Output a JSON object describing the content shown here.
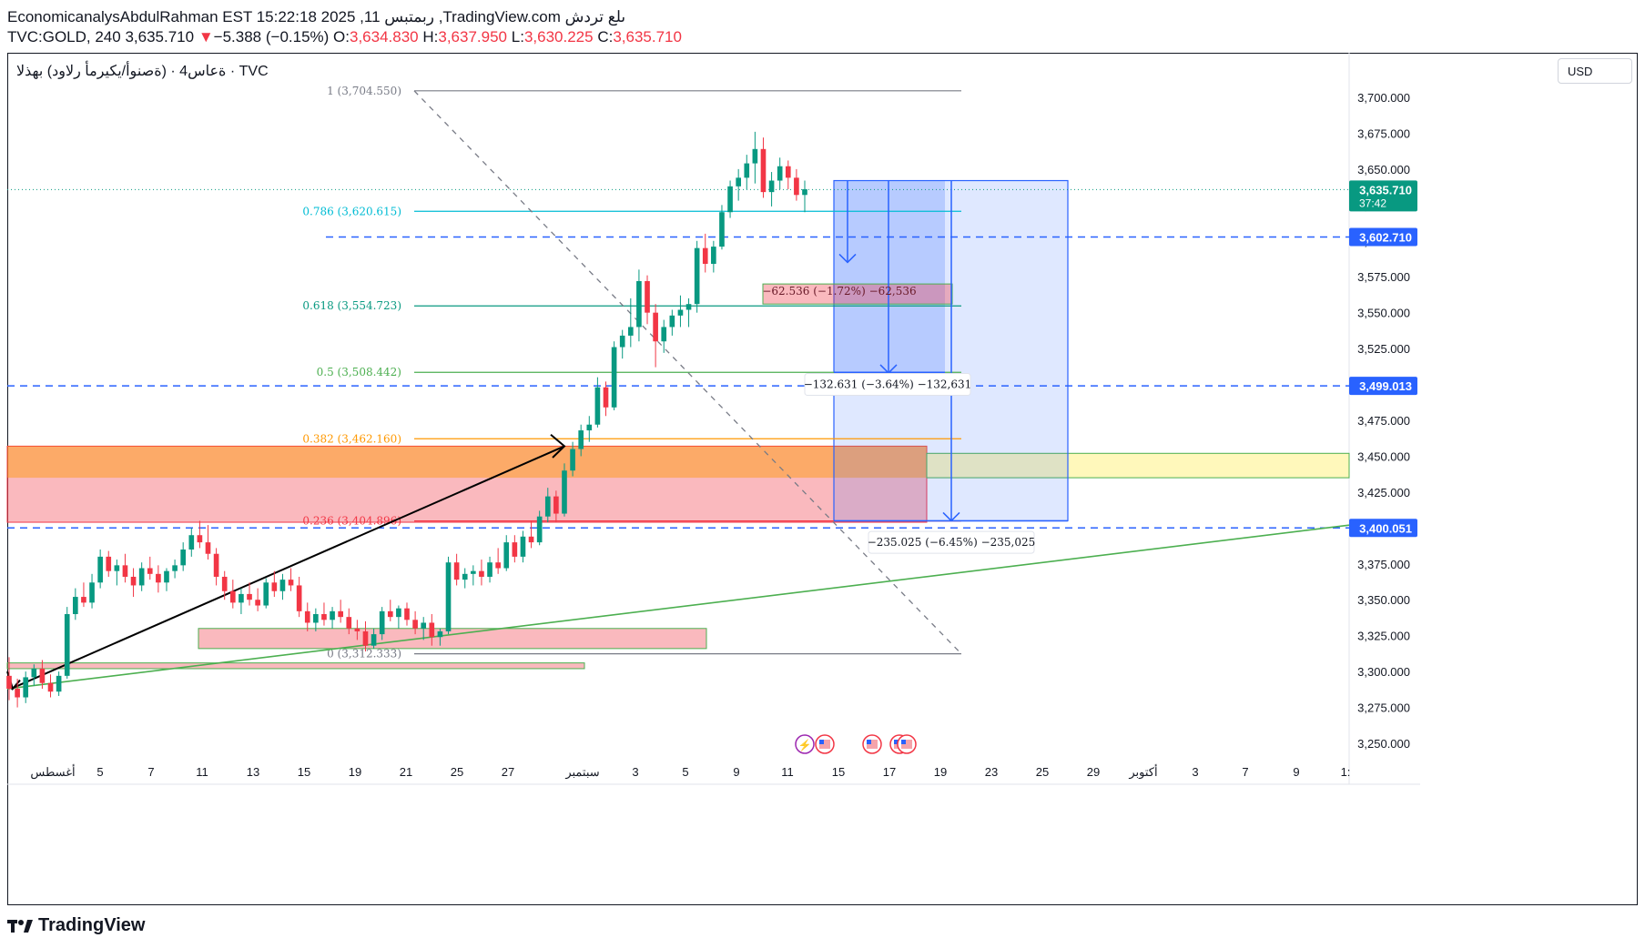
{
  "header": {
    "line1": "EconomicanalysAbdulRahman EST 15:22:18 2025 ,11 ربمتبس ,TradingView.com ىلع تردش",
    "symbol": "TVC:GOLD, 240",
    "last": "3,635.710",
    "change_arrow": "▼",
    "change": "−5.388 (−0.15%)",
    "o_label": "O:",
    "o": "3,634.830",
    "h_label": "H:",
    "h": "3,637.950",
    "l_label": "L:",
    "l": "3,630.225",
    "c_label": "C:",
    "c": "3,635.710"
  },
  "legend": {
    "source": "TVC",
    "text": "ةعاس4 · (ةصنوأ/يكيرمأ رلاود) بهذلا · TVC"
  },
  "currency_button": "USD",
  "footer": {
    "brand": "TradingView"
  },
  "colors": {
    "up": "#089981",
    "down": "#f23645",
    "blue_dash": "#2962ff",
    "fib_1": "#787b86",
    "fib_0786": "#00bcd4",
    "fib_0618": "#089981",
    "fib_05": "#4caf50",
    "fib_0382": "#ff9800",
    "fib_0236": "#f23645"
  },
  "chart_data": {
    "type": "candlestick",
    "symbol": "TVC:GOLD",
    "interval": "240",
    "ylim": [
      3240,
      3730
    ],
    "y_ticks": [
      3250,
      3275,
      3300,
      3325,
      3350,
      3375,
      3400,
      3425,
      3450,
      3475,
      3500,
      3525,
      3550,
      3575,
      3600,
      3625,
      3650,
      3675,
      3700
    ],
    "y_tick_labels": [
      "3,250.000",
      "3,275.000",
      "3,300.000",
      "3,325.000",
      "3,350.000",
      "3,375.000",
      "3,400.000",
      "3,425.000",
      "3,450.000",
      "3,475.000",
      "3,500.000",
      "3,525.000",
      "3,550.000",
      "3,575.000",
      "3,600.000",
      "3,625.000",
      "3,650.000",
      "3,675.000",
      "3,700.000"
    ],
    "x_ticks": [
      "أغسطس",
      "5",
      "7",
      "11",
      "13",
      "15",
      "19",
      "21",
      "25",
      "27",
      "سبتمبر",
      "3",
      "5",
      "9",
      "11",
      "15",
      "17",
      "19",
      "23",
      "25",
      "29",
      "أكتوبر",
      "3",
      "7",
      "9",
      "1:"
    ],
    "price_badges": [
      {
        "value": 3635.71,
        "label": "3,635.710",
        "sub": "37:42",
        "color": "#089981"
      },
      {
        "value": 3602.71,
        "label": "3,602.710",
        "color": "#2962ff"
      },
      {
        "value": 3499.013,
        "label": "3,499.013",
        "color": "#2962ff"
      },
      {
        "value": 3400.051,
        "label": "3,400.051",
        "color": "#2962ff"
      }
    ],
    "horizontal_dashed_levels": [
      3602.71,
      3499.013,
      3400.051
    ],
    "fib_levels": [
      {
        "ratio": "1",
        "value": 3704.55,
        "label": "1 (3,704.550)"
      },
      {
        "ratio": "0.786",
        "value": 3620.615,
        "label": "0.786 (3,620.615)"
      },
      {
        "ratio": "0.618",
        "value": 3554.723,
        "label": "0.618 (3,554.723)"
      },
      {
        "ratio": "0.5",
        "value": 3508.442,
        "label": "0.5 (3,508.442)"
      },
      {
        "ratio": "0.382",
        "value": 3462.16,
        "label": "0.382 (3,462.160)"
      },
      {
        "ratio": "0.236",
        "value": 3404.896,
        "label": "0.236 (3,404.896)"
      },
      {
        "ratio": "0",
        "value": 3312.333,
        "label": "0 (3,312.333)"
      }
    ],
    "zones": [
      {
        "name": "supply-zone",
        "from": 3404,
        "to": 3457
      },
      {
        "name": "orange-zone",
        "from": 3435,
        "to": 3457
      },
      {
        "name": "yellow-zone",
        "from": 3435,
        "to": 3452
      },
      {
        "name": "demand-zone",
        "from": 3316,
        "to": 3330
      },
      {
        "name": "thin-zone",
        "from": 3302,
        "to": 3306
      }
    ],
    "measurements": [
      {
        "label": "−62.536 (−1.72%) −62,536",
        "change": -62.536,
        "pct": -1.72
      },
      {
        "label": "−132.631 (−3.64%) −132,631",
        "change": -132.631,
        "pct": -3.64
      },
      {
        "label": "−235.025 (−6.45%) −235,025",
        "change": -235.025,
        "pct": -6.45
      }
    ],
    "candles": [
      [
        3297,
        3310,
        3280,
        3288
      ],
      [
        3288,
        3295,
        3275,
        3282
      ],
      [
        3282,
        3300,
        3278,
        3296
      ],
      [
        3296,
        3305,
        3290,
        3302
      ],
      [
        3302,
        3308,
        3288,
        3292
      ],
      [
        3292,
        3298,
        3282,
        3286
      ],
      [
        3286,
        3300,
        3283,
        3297
      ],
      [
        3297,
        3345,
        3295,
        3340
      ],
      [
        3340,
        3358,
        3336,
        3352
      ],
      [
        3352,
        3362,
        3345,
        3348
      ],
      [
        3348,
        3368,
        3344,
        3362
      ],
      [
        3362,
        3385,
        3358,
        3380
      ],
      [
        3380,
        3384,
        3366,
        3370
      ],
      [
        3370,
        3378,
        3360,
        3374
      ],
      [
        3374,
        3382,
        3362,
        3366
      ],
      [
        3366,
        3372,
        3352,
        3360
      ],
      [
        3360,
        3376,
        3356,
        3372
      ],
      [
        3372,
        3380,
        3364,
        3368
      ],
      [
        3368,
        3374,
        3355,
        3362
      ],
      [
        3362,
        3372,
        3356,
        3370
      ],
      [
        3370,
        3378,
        3365,
        3374
      ],
      [
        3374,
        3390,
        3370,
        3385
      ],
      [
        3385,
        3400,
        3380,
        3395
      ],
      [
        3395,
        3405,
        3386,
        3390
      ],
      [
        3390,
        3402,
        3378,
        3382
      ],
      [
        3382,
        3386,
        3360,
        3366
      ],
      [
        3366,
        3370,
        3350,
        3356
      ],
      [
        3356,
        3364,
        3344,
        3348
      ],
      [
        3348,
        3358,
        3340,
        3354
      ],
      [
        3354,
        3362,
        3346,
        3350
      ],
      [
        3350,
        3358,
        3342,
        3346
      ],
      [
        3346,
        3365,
        3344,
        3362
      ],
      [
        3362,
        3370,
        3352,
        3356
      ],
      [
        3356,
        3368,
        3350,
        3364
      ],
      [
        3364,
        3372,
        3356,
        3360
      ],
      [
        3360,
        3366,
        3338,
        3342
      ],
      [
        3342,
        3348,
        3328,
        3334
      ],
      [
        3334,
        3344,
        3328,
        3340
      ],
      [
        3340,
        3348,
        3332,
        3336
      ],
      [
        3336,
        3345,
        3330,
        3342
      ],
      [
        3342,
        3350,
        3334,
        3338
      ],
      [
        3338,
        3344,
        3326,
        3330
      ],
      [
        3330,
        3336,
        3322,
        3328
      ],
      [
        3328,
        3335,
        3314,
        3318
      ],
      [
        3318,
        3330,
        3316,
        3326
      ],
      [
        3326,
        3345,
        3322,
        3342
      ],
      [
        3342,
        3350,
        3335,
        3338
      ],
      [
        3338,
        3346,
        3330,
        3344
      ],
      [
        3344,
        3348,
        3332,
        3336
      ],
      [
        3336,
        3342,
        3326,
        3330
      ],
      [
        3330,
        3338,
        3322,
        3334
      ],
      [
        3334,
        3340,
        3318,
        3324
      ],
      [
        3324,
        3330,
        3318,
        3328
      ],
      [
        3328,
        3380,
        3326,
        3376
      ],
      [
        3376,
        3382,
        3360,
        3364
      ],
      [
        3364,
        3372,
        3358,
        3368
      ],
      [
        3368,
        3374,
        3360,
        3370
      ],
      [
        3370,
        3378,
        3360,
        3366
      ],
      [
        3366,
        3380,
        3362,
        3376
      ],
      [
        3376,
        3386,
        3368,
        3372
      ],
      [
        3372,
        3395,
        3370,
        3390
      ],
      [
        3390,
        3395,
        3376,
        3380
      ],
      [
        3380,
        3398,
        3376,
        3394
      ],
      [
        3394,
        3405,
        3386,
        3390
      ],
      [
        3390,
        3412,
        3388,
        3408
      ],
      [
        3408,
        3428,
        3404,
        3422
      ],
      [
        3422,
        3426,
        3404,
        3410
      ],
      [
        3410,
        3445,
        3408,
        3440
      ],
      [
        3440,
        3460,
        3436,
        3455
      ],
      [
        3455,
        3472,
        3450,
        3468
      ],
      [
        3468,
        3478,
        3460,
        3472
      ],
      [
        3472,
        3505,
        3470,
        3498
      ],
      [
        3498,
        3502,
        3478,
        3484
      ],
      [
        3484,
        3530,
        3482,
        3526
      ],
      [
        3526,
        3538,
        3518,
        3534
      ],
      [
        3534,
        3560,
        3526,
        3540
      ],
      [
        3540,
        3580,
        3530,
        3572
      ],
      [
        3572,
        3576,
        3542,
        3550
      ],
      [
        3550,
        3556,
        3512,
        3530
      ],
      [
        3530,
        3545,
        3522,
        3540
      ],
      [
        3540,
        3552,
        3534,
        3548
      ],
      [
        3548,
        3562,
        3540,
        3552
      ],
      [
        3552,
        3560,
        3540,
        3556
      ],
      [
        3556,
        3600,
        3550,
        3595
      ],
      [
        3595,
        3605,
        3578,
        3584
      ],
      [
        3584,
        3600,
        3578,
        3596
      ],
      [
        3596,
        3625,
        3594,
        3620
      ],
      [
        3620,
        3642,
        3616,
        3638
      ],
      [
        3638,
        3650,
        3628,
        3644
      ],
      [
        3644,
        3660,
        3636,
        3654
      ],
      [
        3654,
        3676,
        3640,
        3664
      ],
      [
        3664,
        3672,
        3630,
        3634
      ],
      [
        3634,
        3648,
        3624,
        3642
      ],
      [
        3642,
        3658,
        3636,
        3652
      ],
      [
        3652,
        3656,
        3636,
        3644
      ],
      [
        3644,
        3650,
        3628,
        3632
      ],
      [
        3632,
        3642,
        3620,
        3636
      ]
    ]
  }
}
